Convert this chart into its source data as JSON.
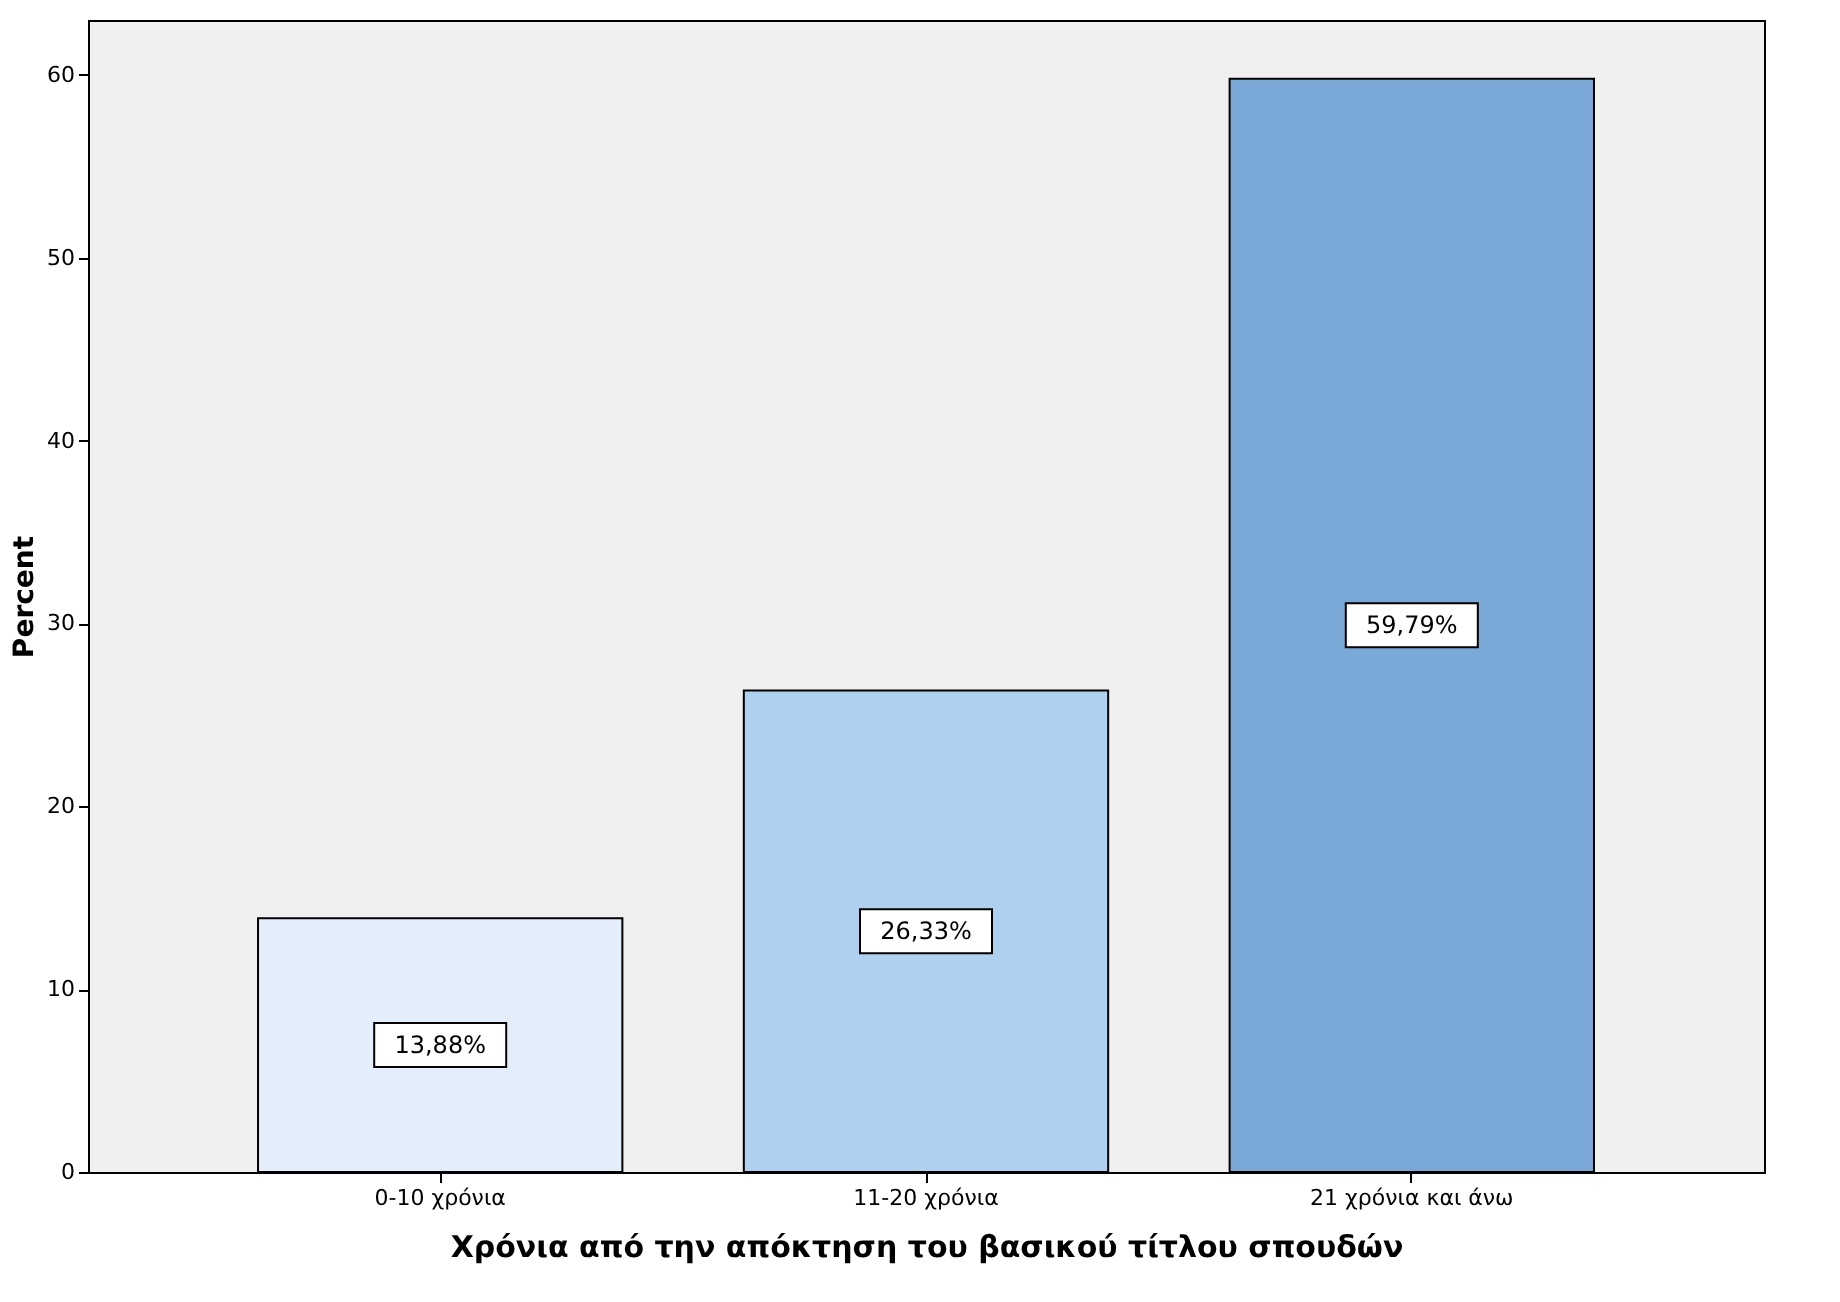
{
  "chart_data": {
    "type": "bar",
    "xlabel": "Χρόνια από την απόκτηση του βασικού τίτλου σπουδών",
    "ylabel": "Percent",
    "categories": [
      "0-10 χρόνια",
      "11-20 χρόνια",
      "21 χρόνια και άνω"
    ],
    "values": [
      13.88,
      26.33,
      59.79
    ],
    "colors": [
      "#e3eefa",
      "#afd0ef",
      "#7aa9d7"
    ],
    "value_labels": [
      "13,88%",
      "26,33%",
      "59,79%"
    ],
    "ylim": [
      0,
      63
    ],
    "yticks": [
      0,
      10,
      20,
      30,
      40,
      50,
      60
    ],
    "grid": false
  }
}
